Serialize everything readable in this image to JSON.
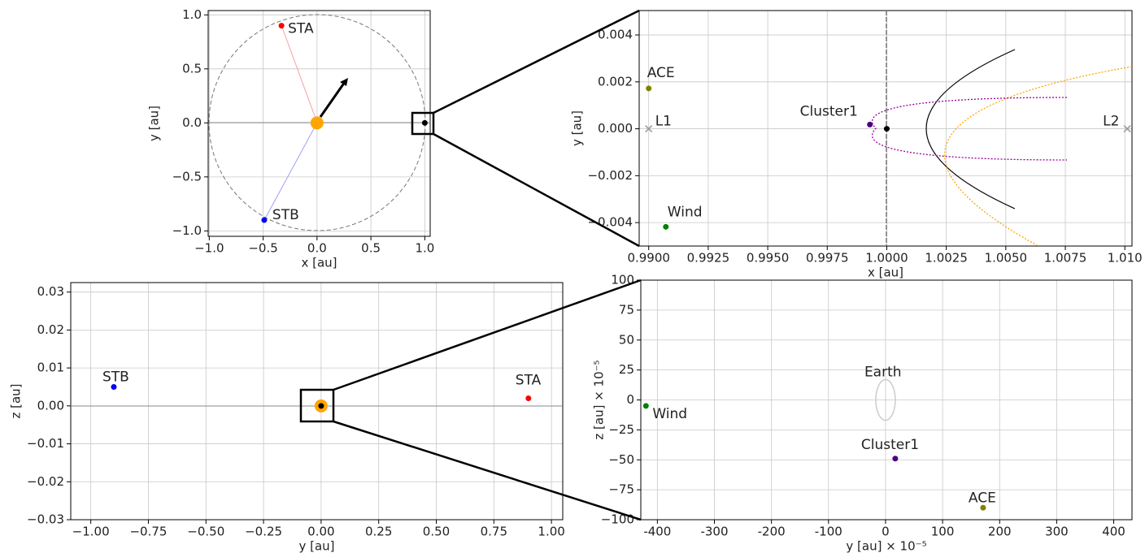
{
  "chart_data": [
    {
      "type": "scatter",
      "xlabel": "x [au]",
      "ylabel": "y [au]",
      "grid": true,
      "xlim": [
        -1.01,
        1.05
      ],
      "ylim": [
        -1.05,
        1.04
      ],
      "xticks": [
        {
          "value": -1.0,
          "label": "−1.0"
        },
        {
          "value": -0.5,
          "label": "−0.5"
        },
        {
          "value": 0.0,
          "label": "0.0"
        },
        0.5,
        {
          "value": 1.0,
          "label": "1.0"
        }
      ],
      "yticks": [
        {
          "value": -1.0,
          "label": "−1.0"
        },
        {
          "value": -0.5,
          "label": "−0.5"
        },
        {
          "value": 0.0,
          "label": "0.0"
        },
        0.5,
        {
          "value": 1.0,
          "label": "1.0"
        }
      ],
      "points": [
        {
          "x": 0,
          "y": 0,
          "color": "#ffa500",
          "marker": "o",
          "markersize": 8
        },
        {
          "name": "STA",
          "x": -0.33,
          "y": 0.9,
          "color": "#ff0000",
          "marker": "o",
          "markersize": 3.5
        },
        {
          "name": "STB",
          "x": -0.49,
          "y": -0.9,
          "color": "#0000ff",
          "marker": "o",
          "markersize": 3.5
        },
        {
          "x": 1.0,
          "y": 0,
          "color": "#000000",
          "marker": "o",
          "markersize": 3.5
        }
      ]
    },
    {
      "type": "scatter",
      "xlabel": "x [au]",
      "ylabel": "y [au]",
      "grid": true,
      "xlim": [
        0.9896,
        1.0103
      ],
      "ylim": [
        -0.005,
        0.00504
      ],
      "xticks": [
        {
          "value": 0.99,
          "label": "0.9900"
        },
        0.9925,
        {
          "value": 0.995,
          "label": "0.9950"
        },
        0.9975,
        {
          "value": 1.0,
          "label": "1.0000"
        },
        1.0025,
        {
          "value": 1.005,
          "label": "1.0050"
        },
        1.0075,
        {
          "value": 1.01,
          "label": "1.010"
        }
      ],
      "yticks": [
        {
          "value": -0.004,
          "label": "−0.004"
        },
        {
          "value": -0.002,
          "label": "−0.002"
        },
        {
          "value": 0,
          "label": "0.000"
        },
        0.002,
        0.004
      ],
      "points": [
        {
          "name": "ACE",
          "x": 0.99,
          "y": 0.00172,
          "color": "#808000",
          "marker": "o",
          "markersize": 3.5
        },
        {
          "name": "L1",
          "x": 0.99,
          "y": 0,
          "color": "#999999",
          "marker": "x",
          "markersize": 4
        },
        {
          "name": "Wind",
          "x": 0.99072,
          "y": -0.00418,
          "color": "#008000",
          "marker": "o",
          "markersize": 3.5
        },
        {
          "name": "Cluster1",
          "x": 0.99929,
          "y": 0.00018,
          "color": "#4b0082",
          "marker": "o",
          "markersize": 3.5
        },
        {
          "x": 1.0,
          "y": 0,
          "color": "#000000",
          "marker": "o",
          "markersize": 3.5
        },
        {
          "name": "L2",
          "x": 1.0101,
          "y": 0,
          "color": "#999999",
          "marker": "x",
          "markersize": 4
        }
      ]
    },
    {
      "type": "scatter",
      "xlabel": "y [au]",
      "ylabel": "z [au]",
      "grid": true,
      "xlim": [
        -1.087,
        1.049
      ],
      "ylim": [
        -0.03,
        0.0325
      ],
      "xticks": [
        {
          "value": -1.0,
          "label": "−1.00"
        },
        {
          "value": -0.75,
          "label": "−0.75"
        },
        {
          "value": -0.5,
          "label": "−0.50"
        },
        {
          "value": -0.25,
          "label": "−0.25"
        },
        {
          "value": 0,
          "label": "0.00"
        },
        0.25,
        {
          "value": 0.5,
          "label": "0.50"
        },
        0.75,
        {
          "value": 1.0,
          "label": "1.00"
        }
      ],
      "yticks": [
        {
          "value": -0.03,
          "label": "−0.03"
        },
        {
          "value": -0.02,
          "label": "−0.02"
        },
        {
          "value": -0.01,
          "label": "−0.01"
        },
        {
          "value": 0,
          "label": "0.00"
        },
        0.01,
        0.02,
        0.03
      ],
      "points": [
        {
          "x": 0,
          "y": 0,
          "color": "#ffa500",
          "marker": "o",
          "markersize": 8
        },
        {
          "x": 0,
          "y": 0,
          "color": "#000000",
          "marker": "o",
          "markersize": 3.5
        },
        {
          "name": "STB",
          "x": -0.9,
          "y": 0.005,
          "color": "#0000ff",
          "marker": "o",
          "markersize": 3.5
        },
        {
          "name": "STA",
          "x": 0.9,
          "y": 0.002,
          "color": "#ff0000",
          "marker": "o",
          "markersize": 3.5
        }
      ]
    },
    {
      "type": "scatter",
      "xlabel": "y [au] × 10⁻⁵",
      "ylabel": "z [au] × 10⁻⁵",
      "grid": true,
      "xlim": [
        -429,
        432
      ],
      "ylim": [
        -100,
        100
      ],
      "xticks": [
        -400,
        -300,
        -200,
        -100,
        0,
        100,
        200,
        300,
        400
      ],
      "yticks": [
        {
          "value": -100,
          "label": "−100"
        },
        {
          "value": -75,
          "label": "−75"
        },
        {
          "value": -50,
          "label": "−50"
        },
        {
          "value": -25,
          "label": "−25"
        },
        0,
        25,
        50,
        75,
        100
      ],
      "points": [
        {
          "name": "Earth",
          "x": 0,
          "y": 0,
          "color": "#cccccc",
          "marker": "ellipse",
          "markersize": 4
        },
        {
          "name": "Wind",
          "x": -420,
          "y": -5,
          "color": "#008000",
          "marker": "o",
          "markersize": 3.5
        },
        {
          "name": "Cluster1",
          "x": 17,
          "y": -49,
          "color": "#4b0082",
          "marker": "o",
          "markersize": 3.5
        },
        {
          "name": "ACE",
          "x": 171,
          "y": -90,
          "color": "#808000",
          "marker": "o",
          "markersize": 3.5
        }
      ]
    }
  ]
}
